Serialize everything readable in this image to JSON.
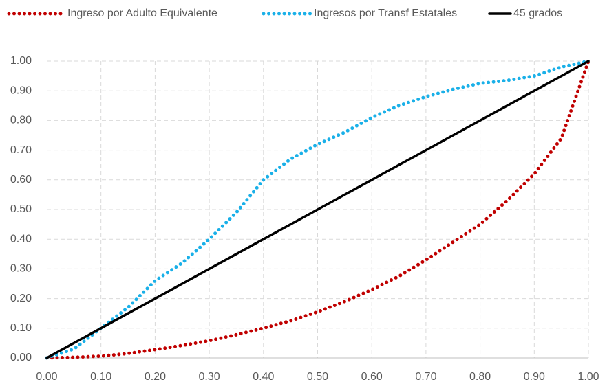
{
  "chart_data": {
    "type": "line",
    "x": [
      0,
      0.05,
      0.1,
      0.15,
      0.2,
      0.25,
      0.3,
      0.35,
      0.4,
      0.45,
      0.5,
      0.55,
      0.6,
      0.65,
      0.7,
      0.75,
      0.8,
      0.85,
      0.9,
      0.95,
      1.0
    ],
    "series": [
      {
        "name": "Ingreso por Adulto Equivalente",
        "color": "#c00000",
        "style": "dotted",
        "values": [
          0,
          0.002,
          0.006,
          0.015,
          0.028,
          0.042,
          0.058,
          0.078,
          0.1,
          0.125,
          0.155,
          0.19,
          0.23,
          0.275,
          0.33,
          0.39,
          0.45,
          0.53,
          0.62,
          0.74,
          1.0
        ]
      },
      {
        "name": "Ingresos por Transf Estatales",
        "color": "#1ab0e8",
        "style": "dotted",
        "values": [
          0,
          0.03,
          0.1,
          0.17,
          0.26,
          0.32,
          0.4,
          0.49,
          0.6,
          0.67,
          0.72,
          0.76,
          0.81,
          0.85,
          0.88,
          0.905,
          0.925,
          0.935,
          0.95,
          0.98,
          1.0
        ]
      },
      {
        "name": "45 grados",
        "color": "#000000",
        "style": "solid",
        "values": [
          0,
          0.05,
          0.1,
          0.15,
          0.2,
          0.25,
          0.3,
          0.35,
          0.4,
          0.45,
          0.5,
          0.55,
          0.6,
          0.65,
          0.7,
          0.75,
          0.8,
          0.85,
          0.9,
          0.95,
          1.0
        ]
      }
    ],
    "xlim": [
      0,
      1
    ],
    "ylim": [
      0,
      1
    ],
    "xticks": [
      {
        "value": 0,
        "label": "0.00"
      },
      {
        "value": 0.1,
        "label": "0.10"
      },
      {
        "value": 0.2,
        "label": "0.20"
      },
      {
        "value": 0.3,
        "label": "0.30"
      },
      {
        "value": 0.4,
        "label": "0.40"
      },
      {
        "value": 0.5,
        "label": "0.50"
      },
      {
        "value": 0.6,
        "label": "0.60"
      },
      {
        "value": 0.7,
        "label": "0.70"
      },
      {
        "value": 0.8,
        "label": "0.80"
      },
      {
        "value": 0.9,
        "label": "0.90"
      },
      {
        "value": 1.0,
        "label": "1.00"
      }
    ],
    "yticks": [
      {
        "value": 0,
        "label": "0.00"
      },
      {
        "value": 0.1,
        "label": "0.10"
      },
      {
        "value": 0.2,
        "label": "0.20"
      },
      {
        "value": 0.3,
        "label": "0.30"
      },
      {
        "value": 0.4,
        "label": "0.40"
      },
      {
        "value": 0.5,
        "label": "0.50"
      },
      {
        "value": 0.6,
        "label": "0.60"
      },
      {
        "value": 0.7,
        "label": "0.70"
      },
      {
        "value": 0.8,
        "label": "0.80"
      },
      {
        "value": 0.9,
        "label": "0.90"
      },
      {
        "value": 1.0,
        "label": "1.00"
      }
    ],
    "grid": true,
    "legend": "top"
  }
}
